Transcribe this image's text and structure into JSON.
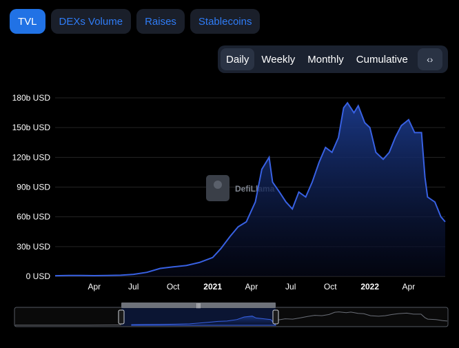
{
  "tabs": [
    {
      "label": "TVL",
      "active": true
    },
    {
      "label": "DEXs Volume",
      "active": false
    },
    {
      "label": "Raises",
      "active": false
    },
    {
      "label": "Stablecoins",
      "active": false
    }
  ],
  "periods": [
    {
      "label": "Daily",
      "active": true
    },
    {
      "label": "Weekly",
      "active": false
    },
    {
      "label": "Monthly",
      "active": false
    },
    {
      "label": "Cumulative",
      "active": false
    }
  ],
  "embed_icon": "code-icon",
  "watermark": "DefiLlama",
  "colors": {
    "line": "#3861e3",
    "accent": "#2172e5",
    "grid": "#242424",
    "fill_top": "#1b3a8a"
  },
  "chart_data": {
    "type": "area",
    "title": "",
    "xlabel": "",
    "ylabel": "",
    "y_unit": "b USD",
    "ylim": [
      0,
      180
    ],
    "yticks": [
      "0 USD",
      "30b USD",
      "60b USD",
      "90b USD",
      "120b USD",
      "150b USD",
      "180b USD"
    ],
    "xticks": [
      {
        "label": "Apr",
        "x": "2020-04",
        "bold": false
      },
      {
        "label": "Jul",
        "x": "2020-07",
        "bold": false
      },
      {
        "label": "Oct",
        "x": "2020-10",
        "bold": false
      },
      {
        "label": "2021",
        "x": "2021-01",
        "bold": true
      },
      {
        "label": "Apr",
        "x": "2021-04",
        "bold": false
      },
      {
        "label": "Jul",
        "x": "2021-07",
        "bold": false
      },
      {
        "label": "Oct",
        "x": "2021-10",
        "bold": false
      },
      {
        "label": "2022",
        "x": "2022-01",
        "bold": true
      },
      {
        "label": "Apr",
        "x": "2022-04",
        "bold": false
      }
    ],
    "grid": true,
    "legend": "none",
    "x": [
      "2020-01-01",
      "2020-02-01",
      "2020-03-01",
      "2020-04-01",
      "2020-05-01",
      "2020-06-01",
      "2020-07-01",
      "2020-08-01",
      "2020-09-01",
      "2020-10-01",
      "2020-11-01",
      "2020-12-01",
      "2021-01-01",
      "2021-01-20",
      "2021-02-10",
      "2021-03-01",
      "2021-03-20",
      "2021-04-10",
      "2021-04-25",
      "2021-05-12",
      "2021-05-20",
      "2021-06-05",
      "2021-06-20",
      "2021-07-05",
      "2021-07-20",
      "2021-08-05",
      "2021-08-20",
      "2021-09-05",
      "2021-09-20",
      "2021-10-05",
      "2021-10-20",
      "2021-11-01",
      "2021-11-10",
      "2021-11-25",
      "2021-12-05",
      "2021-12-20",
      "2022-01-01",
      "2022-01-15",
      "2022-02-01",
      "2022-02-15",
      "2022-03-01",
      "2022-03-15",
      "2022-04-01",
      "2022-04-15",
      "2022-05-01",
      "2022-05-09",
      "2022-05-15",
      "2022-06-01",
      "2022-06-15",
      "2022-06-25"
    ],
    "values": [
      0.6,
      0.9,
      0.8,
      0.7,
      0.9,
      1.1,
      2.0,
      4.0,
      8.0,
      9.5,
      11,
      14,
      19,
      28,
      40,
      50,
      55,
      75,
      108,
      120,
      95,
      85,
      75,
      68,
      85,
      80,
      95,
      115,
      130,
      125,
      140,
      170,
      175,
      165,
      172,
      155,
      150,
      125,
      118,
      125,
      140,
      152,
      158,
      145,
      145,
      100,
      80,
      75,
      60,
      55
    ]
  }
}
